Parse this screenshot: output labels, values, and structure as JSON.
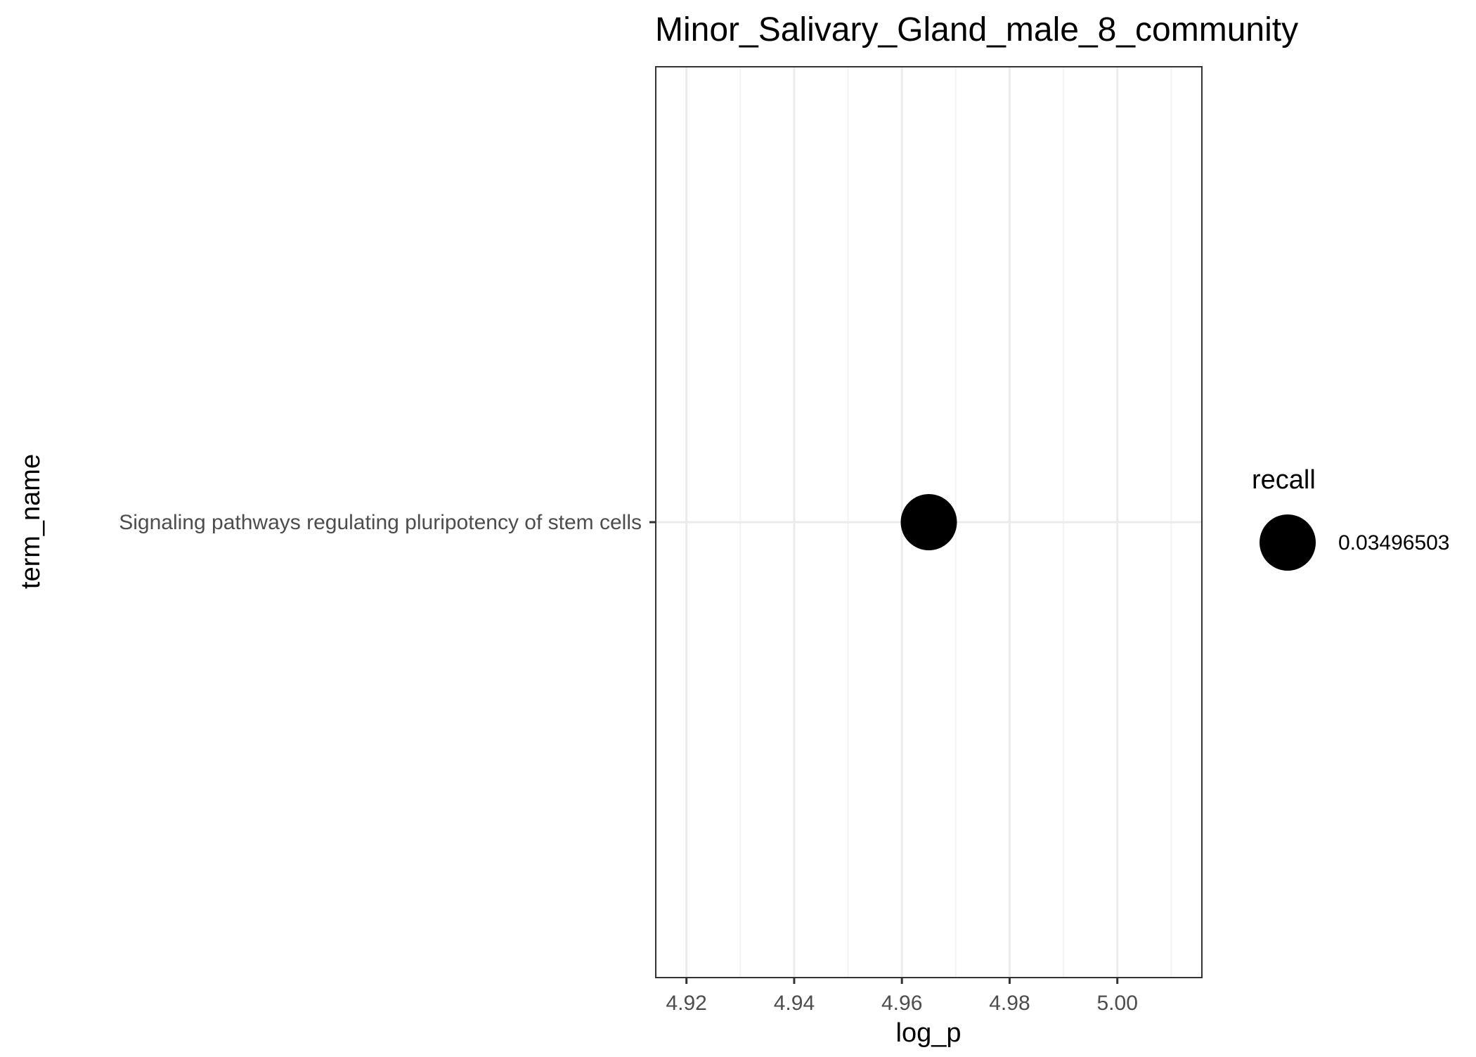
{
  "chart_data": {
    "type": "scatter",
    "title": "Minor_Salivary_Gland_male_8_community",
    "xlabel": "log_p",
    "ylabel": "term_name",
    "xlim": [
      4.9143,
      5.0157
    ],
    "x_ticks": [
      "4.92",
      "4.94",
      "4.96",
      "4.98",
      "5.00"
    ],
    "categories": [
      "Signaling pathways regulating pluripotency of stem cells"
    ],
    "points": [
      {
        "term_name": "Signaling pathways regulating pluripotency of stem cells",
        "log_p": 4.965,
        "recall": 0.03496503
      }
    ],
    "legend": {
      "title": "recall",
      "position": "right",
      "entries": [
        "0.03496503"
      ]
    },
    "grid": true,
    "colors": {
      "point": "#000000",
      "panel_border": "#333333",
      "grid_major": "#ebebeb",
      "grid_minor": "#f3f3f3",
      "tick_text": "#4d4d4d",
      "axis_title": "#000000"
    }
  }
}
